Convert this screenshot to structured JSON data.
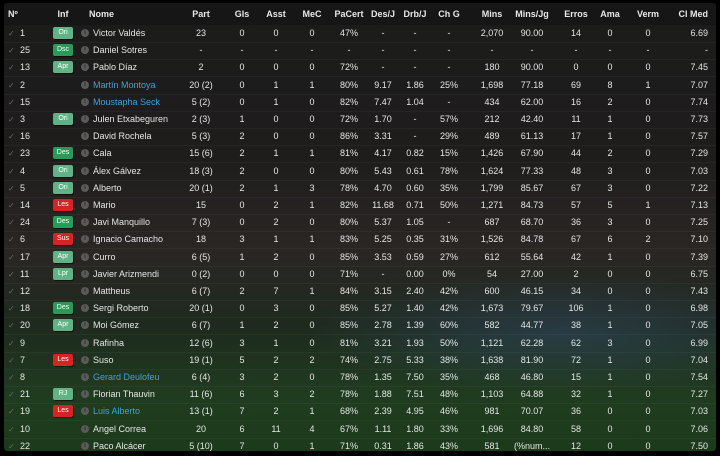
{
  "colors": {
    "badge_light_green": "#5fb384",
    "badge_dark_green": "#2a9a58",
    "badge_red": "#d42424",
    "link_blue": "#3fa0e0"
  },
  "headers": [
    "Nº",
    "Inf",
    "Nome",
    "Part",
    "Gls",
    "Asst",
    "MeC",
    "PaCert",
    "Des/J",
    "Drb/J",
    "Ch G",
    "Mins",
    "Mins/Jg",
    "Erros",
    "Ama",
    "Verm",
    "Cl Med"
  ],
  "rows": [
    {
      "num": "1",
      "inf": "Ori",
      "inf_type": "light",
      "name": "Victor Valdés",
      "link": false,
      "v": [
        "23",
        "0",
        "0",
        "0",
        "47%",
        "-",
        "-",
        "-",
        "2,070",
        "90.00",
        "14",
        "0",
        "0",
        "6.69"
      ]
    },
    {
      "num": "25",
      "inf": "Dsc",
      "inf_type": "dark",
      "name": "Daniel Sotres",
      "link": false,
      "v": [
        "-",
        "-",
        "-",
        "-",
        "-",
        "-",
        "-",
        "-",
        "-",
        "-",
        "-",
        "-",
        "-",
        "-"
      ]
    },
    {
      "num": "13",
      "inf": "Apr",
      "inf_type": "light",
      "name": "Pablo Díaz",
      "link": false,
      "v": [
        "2",
        "0",
        "0",
        "0",
        "72%",
        "-",
        "-",
        "-",
        "180",
        "90.00",
        "0",
        "0",
        "0",
        "7.45"
      ]
    },
    {
      "num": "2",
      "inf": "",
      "inf_type": "",
      "name": "Martín Montoya",
      "link": true,
      "v": [
        "20 (2)",
        "0",
        "1",
        "1",
        "80%",
        "9.17",
        "1.86",
        "25%",
        "1,698",
        "77.18",
        "69",
        "8",
        "1",
        "7.07"
      ]
    },
    {
      "num": "15",
      "inf": "",
      "inf_type": "",
      "name": "Moustapha Seck",
      "link": true,
      "v": [
        "5 (2)",
        "0",
        "1",
        "0",
        "82%",
        "7.47",
        "1.04",
        "-",
        "434",
        "62.00",
        "16",
        "2",
        "0",
        "7.74"
      ]
    },
    {
      "num": "3",
      "inf": "Ori",
      "inf_type": "light",
      "name": "Julen Etxabeguren",
      "link": false,
      "v": [
        "2 (3)",
        "1",
        "0",
        "0",
        "72%",
        "1.70",
        "-",
        "57%",
        "212",
        "42.40",
        "11",
        "1",
        "0",
        "7.73"
      ]
    },
    {
      "num": "16",
      "inf": "",
      "inf_type": "",
      "name": "David Rochela",
      "link": false,
      "v": [
        "5 (3)",
        "2",
        "0",
        "0",
        "86%",
        "3.31",
        "-",
        "29%",
        "489",
        "61.13",
        "17",
        "1",
        "0",
        "7.57"
      ]
    },
    {
      "num": "23",
      "inf": "Des",
      "inf_type": "dark",
      "name": "Cala",
      "link": false,
      "v": [
        "15 (6)",
        "2",
        "1",
        "1",
        "81%",
        "4.17",
        "0.82",
        "15%",
        "1,426",
        "67.90",
        "44",
        "2",
        "0",
        "7.29"
      ]
    },
    {
      "num": "4",
      "inf": "Ori",
      "inf_type": "light",
      "name": "Álex Gálvez",
      "link": false,
      "v": [
        "18 (3)",
        "2",
        "0",
        "0",
        "80%",
        "5.43",
        "0.61",
        "78%",
        "1,624",
        "77.33",
        "48",
        "3",
        "0",
        "7.03"
      ]
    },
    {
      "num": "5",
      "inf": "Ori",
      "inf_type": "light",
      "name": "Alberto",
      "link": false,
      "v": [
        "20 (1)",
        "2",
        "1",
        "3",
        "78%",
        "4.70",
        "0.60",
        "35%",
        "1,799",
        "85.67",
        "67",
        "3",
        "0",
        "7.22"
      ]
    },
    {
      "num": "14",
      "inf": "Les",
      "inf_type": "red",
      "name": "Mario",
      "link": false,
      "v": [
        "15",
        "0",
        "2",
        "1",
        "82%",
        "11.68",
        "0.71",
        "50%",
        "1,271",
        "84.73",
        "57",
        "5",
        "1",
        "7.13"
      ]
    },
    {
      "num": "24",
      "inf": "Des",
      "inf_type": "dark",
      "name": "Javi Manquillo",
      "link": false,
      "v": [
        "7 (3)",
        "0",
        "2",
        "0",
        "80%",
        "5.37",
        "1.05",
        "-",
        "687",
        "68.70",
        "36",
        "3",
        "0",
        "7.25"
      ]
    },
    {
      "num": "6",
      "inf": "Sus",
      "inf_type": "red",
      "name": "Ignacio Camacho",
      "link": false,
      "v": [
        "18",
        "3",
        "1",
        "1",
        "83%",
        "5.25",
        "0.35",
        "31%",
        "1,526",
        "84.78",
        "67",
        "6",
        "2",
        "7.10"
      ]
    },
    {
      "num": "17",
      "inf": "Apr",
      "inf_type": "light",
      "name": "Curro",
      "link": false,
      "v": [
        "6 (5)",
        "1",
        "2",
        "0",
        "85%",
        "3.53",
        "0.59",
        "27%",
        "612",
        "55.64",
        "42",
        "1",
        "0",
        "7.39"
      ]
    },
    {
      "num": "11",
      "inf": "Lpr",
      "inf_type": "light",
      "name": "Javier Arizmendi",
      "link": false,
      "v": [
        "0 (2)",
        "0",
        "0",
        "0",
        "71%",
        "-",
        "0.00",
        "0%",
        "54",
        "27.00",
        "2",
        "0",
        "0",
        "6.75"
      ]
    },
    {
      "num": "12",
      "inf": "",
      "inf_type": "",
      "name": "Mattheus",
      "link": false,
      "v": [
        "6 (7)",
        "2",
        "7",
        "1",
        "84%",
        "3.15",
        "2.40",
        "42%",
        "600",
        "46.15",
        "34",
        "0",
        "0",
        "7.43"
      ]
    },
    {
      "num": "18",
      "inf": "Des",
      "inf_type": "dark",
      "name": "Sergi Roberto",
      "link": false,
      "v": [
        "20 (1)",
        "0",
        "3",
        "0",
        "85%",
        "5.27",
        "1.40",
        "42%",
        "1,673",
        "79.67",
        "106",
        "1",
        "0",
        "6.98"
      ]
    },
    {
      "num": "20",
      "inf": "Apr",
      "inf_type": "light",
      "name": "Moi Gómez",
      "link": false,
      "v": [
        "6 (7)",
        "1",
        "2",
        "0",
        "85%",
        "2.78",
        "1.39",
        "60%",
        "582",
        "44.77",
        "38",
        "1",
        "0",
        "7.05"
      ]
    },
    {
      "num": "9",
      "inf": "",
      "inf_type": "",
      "name": "Rafinha",
      "link": false,
      "v": [
        "12 (6)",
        "3",
        "1",
        "0",
        "81%",
        "3.21",
        "1.93",
        "50%",
        "1,121",
        "62.28",
        "62",
        "3",
        "0",
        "6.99"
      ]
    },
    {
      "num": "7",
      "inf": "Les",
      "inf_type": "red",
      "name": "Suso",
      "link": false,
      "v": [
        "19 (1)",
        "5",
        "2",
        "2",
        "74%",
        "2.75",
        "5.33",
        "38%",
        "1,638",
        "81.90",
        "72",
        "1",
        "0",
        "7.04"
      ]
    },
    {
      "num": "8",
      "inf": "",
      "inf_type": "",
      "name": "Gerard Deulofeu",
      "link": true,
      "v": [
        "6 (4)",
        "3",
        "2",
        "0",
        "78%",
        "1.35",
        "7.50",
        "35%",
        "468",
        "46.80",
        "15",
        "1",
        "0",
        "7.54"
      ]
    },
    {
      "num": "21",
      "inf": "RJ",
      "inf_type": "light",
      "name": "Florian Thauvin",
      "link": false,
      "v": [
        "11 (6)",
        "6",
        "3",
        "2",
        "78%",
        "1.88",
        "7.51",
        "48%",
        "1,103",
        "64.88",
        "32",
        "1",
        "0",
        "7.27"
      ]
    },
    {
      "num": "19",
      "inf": "Les",
      "inf_type": "red",
      "name": "Luis Alberto",
      "link": true,
      "v": [
        "13 (1)",
        "7",
        "2",
        "1",
        "68%",
        "2.39",
        "4.95",
        "46%",
        "981",
        "70.07",
        "36",
        "0",
        "0",
        "7.03"
      ]
    },
    {
      "num": "10",
      "inf": "",
      "inf_type": "",
      "name": "Angel Correa",
      "link": false,
      "v": [
        "20",
        "6",
        "11",
        "4",
        "67%",
        "1.11",
        "1.80",
        "33%",
        "1,696",
        "84.80",
        "58",
        "0",
        "0",
        "7.06"
      ]
    },
    {
      "num": "22",
      "inf": "",
      "inf_type": "",
      "name": "Paco Alcácer",
      "link": false,
      "v": [
        "5 (10)",
        "7",
        "0",
        "1",
        "71%",
        "0.31",
        "1.86",
        "43%",
        "581",
        "(%num...",
        "12",
        "0",
        "0",
        "7.50"
      ]
    }
  ]
}
